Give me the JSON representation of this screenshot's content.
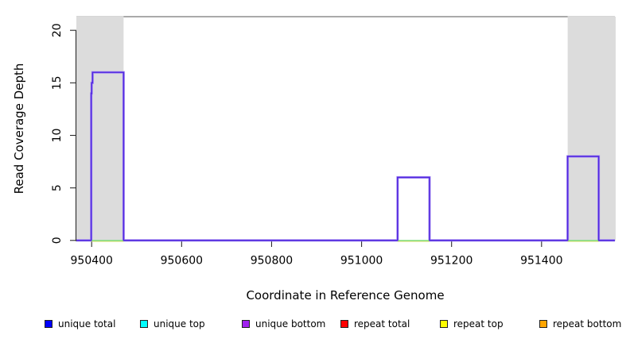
{
  "chart_data": {
    "type": "line",
    "title": "",
    "xlabel": "Coordinate in Reference Genome",
    "ylabel": "Read Coverage Depth",
    "xlim": [
      950366,
      951563
    ],
    "ylim": [
      0,
      21.3
    ],
    "x_ticks": [
      950400,
      950600,
      950800,
      951000,
      951200,
      951400
    ],
    "y_ticks": [
      0,
      5,
      10,
      15,
      20
    ],
    "grid": false,
    "legend_position": "bottom",
    "shaded_regions": {
      "name": "repeat-region-shading",
      "color": "#DCDCDC",
      "regions": [
        {
          "start": 950366,
          "end": 950471
        },
        {
          "start": 951458,
          "end": 951563
        }
      ]
    },
    "coverage_profile": {
      "name": "unique bottom",
      "halo_color": "#A58CF2",
      "color": "#5229E0",
      "segments": [
        {
          "start": 950366,
          "end": 950399,
          "depth": 0
        },
        {
          "start": 950399,
          "end": 950400,
          "depth": 14
        },
        {
          "start": 950400,
          "end": 950402,
          "depth": 15
        },
        {
          "start": 950402,
          "end": 950471,
          "depth": 16
        },
        {
          "start": 950471,
          "end": 951080,
          "depth": 0
        },
        {
          "start": 951080,
          "end": 951151,
          "depth": 6
        },
        {
          "start": 951151,
          "end": 951458,
          "depth": 0
        },
        {
          "start": 951458,
          "end": 951527,
          "depth": 8
        },
        {
          "start": 951527,
          "end": 951563,
          "depth": 0
        }
      ]
    },
    "zero_line_overlays": [
      {
        "name": "repeat top",
        "color": "#E8E27A",
        "segments": [
          [
            950400,
            950471
          ],
          [
            951080,
            951151
          ],
          [
            951458,
            951527
          ]
        ]
      },
      {
        "name": "unique top",
        "color": "#7CDC7C",
        "segments": [
          [
            950400,
            950471
          ],
          [
            951080,
            951151
          ],
          [
            951458,
            951527
          ]
        ]
      }
    ],
    "legend": [
      {
        "label": "unique total",
        "color": "#0000FF"
      },
      {
        "label": "unique top",
        "color": "#00FFFF"
      },
      {
        "label": "unique bottom",
        "color": "#A020F0"
      },
      {
        "label": "repeat total",
        "color": "#FF0000"
      },
      {
        "label": "repeat top",
        "color": "#FFFF00"
      },
      {
        "label": "repeat bottom",
        "color": "#FFA500"
      }
    ]
  }
}
